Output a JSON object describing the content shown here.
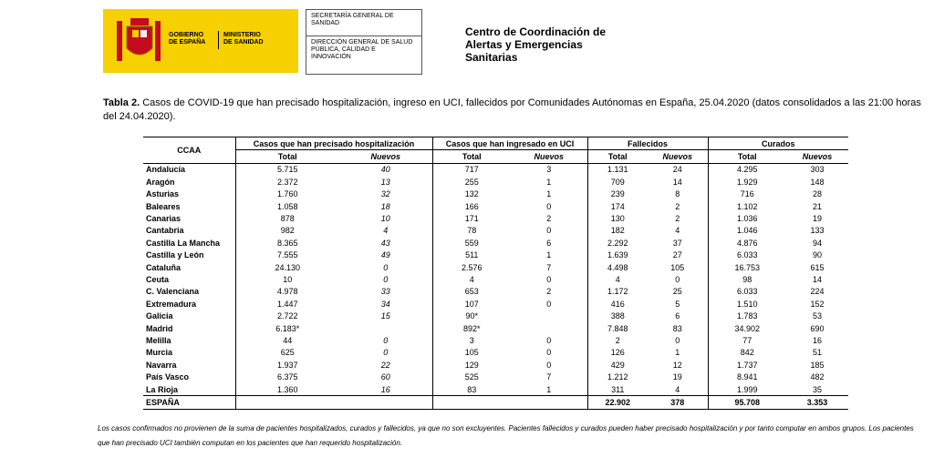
{
  "header": {
    "gov": [
      "GOBIERNO",
      "DE ESPAÑA"
    ],
    "ministry": [
      "MINISTERIO",
      "DE SANIDAD"
    ],
    "box": [
      "SECRETARÍA GENERAL DE SANIDAD",
      "DIRECCIÓN GENERAL DE SALUD PÚBLICA, CALIDAD E INNOVACIÓN"
    ],
    "center": [
      "Centro de Coordinación de",
      "Alertas y Emergencias",
      "Sanitarias"
    ]
  },
  "caption": {
    "label": "Tabla 2.",
    "text": "Casos de COVID-19 que han precisado hospitalización, ingreso en UCI, fallecidos  por Comunidades Autónomas en España, 25.04.2020 (datos consolidados a las 21:00 horas del 24.04.2020)."
  },
  "table": {
    "corner": "CCAA",
    "groups": [
      "Casos que han precisado hospitalización",
      "Casos que han ingresado en UCI",
      "Fallecidos",
      "Curados"
    ],
    "subheaders": [
      "Total",
      "Nuevos",
      "Total",
      "Nuevos",
      "Total",
      "Nuevos",
      "Total",
      "Nuevos"
    ],
    "rows": [
      [
        "Andalucía",
        "5.715",
        "40",
        "717",
        "3",
        "1.131",
        "24",
        "4.295",
        "303"
      ],
      [
        "Aragón",
        "2.372",
        "13",
        "255",
        "1",
        "709",
        "14",
        "1.929",
        "148"
      ],
      [
        "Asturias",
        "1.760",
        "32",
        "132",
        "1",
        "239",
        "8",
        "716",
        "28"
      ],
      [
        "Baleares",
        "1.058",
        "18",
        "166",
        "0",
        "174",
        "2",
        "1.102",
        "21"
      ],
      [
        "Canarias",
        "878",
        "10",
        "171",
        "2",
        "130",
        "2",
        "1.036",
        "19"
      ],
      [
        "Cantabria",
        "982",
        "4",
        "78",
        "0",
        "182",
        "4",
        "1.046",
        "133"
      ],
      [
        "Castilla La Mancha",
        "8.365",
        "43",
        "559",
        "6",
        "2.292",
        "37",
        "4.876",
        "94"
      ],
      [
        "Castilla y León",
        "7.555",
        "49",
        "511",
        "1",
        "1.639",
        "27",
        "6.033",
        "90"
      ],
      [
        "Cataluña",
        "24.130",
        "0",
        "2.576",
        "7",
        "4.498",
        "105",
        "16.753",
        "615"
      ],
      [
        "Ceuta",
        "10",
        "0",
        "4",
        "0",
        "4",
        "0",
        "98",
        "14"
      ],
      [
        "C. Valenciana",
        "4.978",
        "33",
        "653",
        "2",
        "1.172",
        "25",
        "6.033",
        "224"
      ],
      [
        "Extremadura",
        "1.447",
        "34",
        "107",
        "0",
        "416",
        "5",
        "1.510",
        "152"
      ],
      [
        "Galicia",
        "2.722",
        "15",
        "90*",
        null,
        "388",
        "6",
        "1.783",
        "53"
      ],
      [
        "Madrid",
        "6.183*",
        null,
        "892*",
        null,
        "7.848",
        "83",
        "34.902",
        "690"
      ],
      [
        "Melilla",
        "44",
        "0",
        "3",
        "0",
        "2",
        "0",
        "77",
        "16"
      ],
      [
        "Murcia",
        "625",
        "0",
        "105",
        "0",
        "126",
        "1",
        "842",
        "51"
      ],
      [
        "Navarra",
        "1.937",
        "22",
        "129",
        "0",
        "429",
        "12",
        "1.737",
        "185"
      ],
      [
        "País Vasco",
        "6.375",
        "60",
        "525",
        "7",
        "1.212",
        "19",
        "8.941",
        "482"
      ],
      [
        "La Rioja",
        "1.360",
        "16",
        "83",
        "1",
        "311",
        "4",
        "1.999",
        "35"
      ],
      [
        "ESPAÑA",
        null,
        null,
        null,
        null,
        "22.902",
        "378",
        "95.708",
        "3.353"
      ]
    ]
  },
  "footnote": "Los casos confirmados no provienen de la suma de pacientes hospitalizados, curados y fallecidos, ya que no son excluyentes. Pacientes fallecidos y curados pueden haber precisado hospitalización y por tanto computar en ambos grupos. Los pacientes que han precisado UCI también computan en los pacientes que han requerido hospitalización."
}
